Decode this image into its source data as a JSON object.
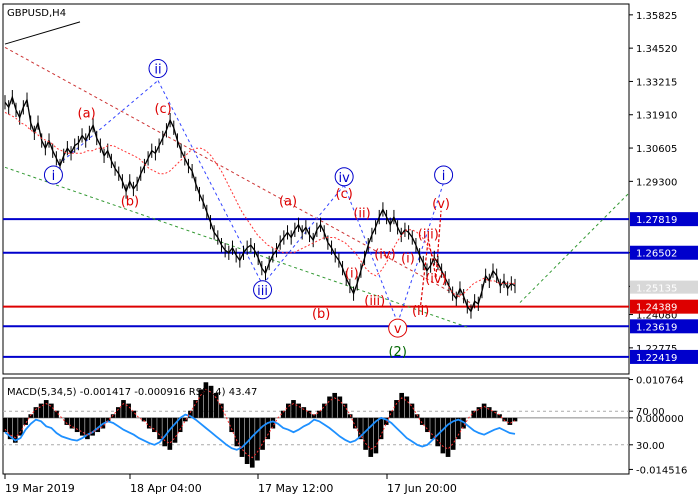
{
  "chart_data": {
    "type": "line",
    "symbol_label": "GBPUSD,H4",
    "price_axis": {
      "range": [
        1.2175,
        1.3625
      ],
      "ticks": [
        "1.35825",
        "1.34520",
        "1.33215",
        "1.31910",
        "1.30605",
        "1.29300",
        "1.26502",
        "1.25185",
        "1.24080",
        "1.22775"
      ],
      "tick_values": [
        1.35825,
        1.3452,
        1.33215,
        1.3191,
        1.30605,
        1.293,
        1.26502,
        1.25185,
        1.2408,
        1.22775
      ],
      "current_price_label": "1.25135",
      "current_price": 1.25135
    },
    "levels": [
      {
        "value": 1.27819,
        "label": "1.27819",
        "color": "#0000cc"
      },
      {
        "value": 1.26502,
        "label": "1.26502",
        "color": "#0000cc"
      },
      {
        "value": 1.24389,
        "label": "1.24389",
        "color": "#dd0000"
      },
      {
        "value": 1.23619,
        "label": "1.23619",
        "color": "#0000cc"
      },
      {
        "value": 1.22419,
        "label": "1.22419",
        "color": "#0000cc"
      }
    ],
    "x_labels": [
      "19 Mar 2019",
      "18 Apr 04:00",
      "17 May 12:00",
      "17 Jun 20:00"
    ],
    "price_series": [
      1.324,
      1.322,
      1.326,
      1.321,
      1.318,
      1.322,
      1.325,
      1.316,
      1.312,
      1.316,
      1.309,
      1.306,
      1.309,
      1.305,
      1.302,
      1.299,
      1.303,
      1.306,
      1.304,
      1.307,
      1.308,
      1.311,
      1.309,
      1.312,
      1.315,
      1.31,
      1.307,
      1.303,
      1.305,
      1.301,
      1.298,
      1.296,
      1.293,
      1.289,
      1.293,
      1.29,
      1.292,
      1.296,
      1.299,
      1.302,
      1.305,
      1.304,
      1.307,
      1.31,
      1.313,
      1.317,
      1.314,
      1.309,
      1.305,
      1.302,
      1.299,
      1.297,
      1.292,
      1.288,
      1.285,
      1.281,
      1.277,
      1.273,
      1.271,
      1.268,
      1.266,
      1.265,
      1.267,
      1.264,
      1.262,
      1.265,
      1.267,
      1.268,
      1.266,
      1.263,
      1.259,
      1.257,
      1.261,
      1.264,
      1.266,
      1.269,
      1.271,
      1.273,
      1.271,
      1.274,
      1.276,
      1.273,
      1.275,
      1.272,
      1.27,
      1.274,
      1.276,
      1.273,
      1.269,
      1.267,
      1.264,
      1.262,
      1.259,
      1.255,
      1.252,
      1.249,
      1.253,
      1.258,
      1.263,
      1.268,
      1.272,
      1.275,
      1.279,
      1.282,
      1.279,
      1.276,
      1.279,
      1.275,
      1.272,
      1.274,
      1.273,
      1.271,
      1.268,
      1.264,
      1.261,
      1.258,
      1.26,
      1.263,
      1.261,
      1.258,
      1.255,
      1.252,
      1.249,
      1.247,
      1.251,
      1.248,
      1.244,
      1.242,
      1.246,
      1.245,
      1.25,
      1.256,
      1.254,
      1.258,
      1.256,
      1.252,
      1.254,
      1.251,
      1.253,
      1.252
    ],
    "ma_series": [
      1.32,
      1.319,
      1.318,
      1.316,
      1.315,
      1.313,
      1.312,
      1.31,
      1.309,
      1.308,
      1.306,
      1.305,
      1.304,
      1.304,
      1.304,
      1.304,
      1.305,
      1.305,
      1.306,
      1.306,
      1.307,
      1.307,
      1.306,
      1.305,
      1.304,
      1.303,
      1.302,
      1.3,
      1.298,
      1.297,
      1.296,
      1.296,
      1.297,
      1.299,
      1.301,
      1.303,
      1.305,
      1.306,
      1.306,
      1.305,
      1.303,
      1.3,
      1.297,
      1.293,
      1.289,
      1.285,
      1.281,
      1.278,
      1.275,
      1.272,
      1.27,
      1.268,
      1.267,
      1.266,
      1.265,
      1.265,
      1.265,
      1.266,
      1.267,
      1.268,
      1.269,
      1.27,
      1.271,
      1.271,
      1.271,
      1.27,
      1.269,
      1.267,
      1.265,
      1.262,
      1.259,
      1.257,
      1.256,
      1.258,
      1.261,
      1.265,
      1.269,
      1.272,
      1.274,
      1.274,
      1.273,
      1.271,
      1.268,
      1.264,
      1.26,
      1.256,
      1.252,
      1.249,
      1.248,
      1.249,
      1.251,
      1.253,
      1.254,
      1.255,
      1.254,
      1.254,
      1.253,
      1.253,
      1.253,
      1.253
    ],
    "wave_labels": [
      {
        "text": "i",
        "color": "#0000cc",
        "circled": true,
        "t": 0.095,
        "price": 1.2955
      },
      {
        "text": "ii",
        "color": "#0000cc",
        "circled": true,
        "t": 0.3,
        "price": 1.3372
      },
      {
        "text": "iii",
        "color": "#0000cc",
        "circled": true,
        "t": 0.505,
        "price": 1.2505
      },
      {
        "text": "iv",
        "color": "#0000cc",
        "circled": true,
        "t": 0.665,
        "price": 1.2948
      },
      {
        "text": "i",
        "color": "#0000cc",
        "circled": true,
        "t": 0.86,
        "price": 1.2955
      },
      {
        "text": "v",
        "color": "#dd0000",
        "circled": true,
        "t": 0.77,
        "price": 1.2355
      },
      {
        "text": "(2)",
        "color": "#006600",
        "circled": false,
        "t": 0.77,
        "price": 1.2265
      },
      {
        "text": "(a)",
        "color": "#dd0000",
        "circled": false,
        "t": 0.16,
        "price": 1.32
      },
      {
        "text": "(b)",
        "color": "#dd0000",
        "circled": false,
        "t": 0.245,
        "price": 1.2855
      },
      {
        "text": "(c)",
        "color": "#dd0000",
        "circled": false,
        "t": 0.31,
        "price": 1.3218
      },
      {
        "text": "(a)",
        "color": "#dd0000",
        "circled": false,
        "t": 0.555,
        "price": 1.2855
      },
      {
        "text": "(b)",
        "color": "#dd0000",
        "circled": false,
        "t": 0.62,
        "price": 1.2415
      },
      {
        "text": "(c)",
        "color": "#dd0000",
        "circled": false,
        "t": 0.665,
        "price": 1.2885
      },
      {
        "text": "(i)",
        "color": "#dd0000",
        "circled": false,
        "t": 0.68,
        "price": 1.2573
      },
      {
        "text": "(ii)",
        "color": "#dd0000",
        "circled": false,
        "t": 0.7,
        "price": 1.2808
      },
      {
        "text": "(iii)",
        "color": "#dd0000",
        "circled": false,
        "t": 0.725,
        "price": 1.2465
      },
      {
        "text": "(iv)",
        "color": "#dd0000",
        "circled": false,
        "t": 0.745,
        "price": 1.2648
      },
      {
        "text": "(i)",
        "color": "#dd0000",
        "circled": false,
        "t": 0.79,
        "price": 1.2632
      },
      {
        "text": "(ii)",
        "color": "#dd0000",
        "circled": false,
        "t": 0.815,
        "price": 1.2425
      },
      {
        "text": "(iii)",
        "color": "#dd0000",
        "circled": false,
        "t": 0.83,
        "price": 1.2725
      },
      {
        "text": "(iv)",
        "color": "#dd0000",
        "circled": false,
        "t": 0.845,
        "price": 1.2552
      },
      {
        "text": "(v)",
        "color": "#dd0000",
        "circled": false,
        "t": 0.855,
        "price": 1.2845
      }
    ],
    "indicator": {
      "title": "MACD(5,34,5) -0.001417 -0.000916 RSI(14) 43.47",
      "macd_range": [
        -0.0158,
        0.0112
      ],
      "rsi_range": [
        0,
        100
      ],
      "ticks": [
        "0.010764",
        "70.00",
        "0.000000",
        "30.00",
        "-0.014516"
      ],
      "tick_values": [
        0.010764,
        70,
        0,
        30,
        -0.014516
      ],
      "tick_kinds": [
        "macd",
        "rsi",
        "macd",
        "rsi",
        "macd"
      ],
      "macd_histogram": [
        -0.004,
        -0.006,
        -0.007,
        -0.005,
        -0.002,
        0.001,
        0.003,
        0.004,
        0.005,
        0.004,
        0.002,
        0.0,
        -0.002,
        -0.003,
        -0.004,
        -0.005,
        -0.006,
        -0.005,
        -0.004,
        -0.003,
        -0.001,
        0.001,
        0.003,
        0.005,
        0.004,
        0.002,
        0.0,
        -0.001,
        -0.003,
        -0.004,
        -0.006,
        -0.008,
        -0.009,
        -0.007,
        -0.004,
        -0.001,
        0.002,
        0.005,
        0.008,
        0.01,
        0.009,
        0.007,
        0.004,
        0.0,
        -0.004,
        -0.008,
        -0.011,
        -0.013,
        -0.014,
        -0.012,
        -0.009,
        -0.006,
        -0.003,
        0.0,
        0.002,
        0.004,
        0.005,
        0.004,
        0.003,
        0.002,
        0.001,
        0.002,
        0.004,
        0.006,
        0.007,
        0.006,
        0.004,
        0.001,
        -0.003,
        -0.006,
        -0.009,
        -0.011,
        -0.01,
        -0.006,
        -0.002,
        0.002,
        0.005,
        0.007,
        0.006,
        0.004,
        0.001,
        -0.002,
        -0.004,
        -0.006,
        -0.008,
        -0.01,
        -0.011,
        -0.009,
        -0.006,
        -0.003,
        0.0,
        0.002,
        0.003,
        0.004,
        0.003,
        0.002,
        0.001,
        -0.001,
        -0.002,
        -0.001
      ],
      "rsi_series": [
        45,
        40,
        35,
        38,
        48,
        55,
        60,
        58,
        52,
        50,
        44,
        40,
        38,
        36,
        35,
        38,
        42,
        45,
        50,
        55,
        58,
        56,
        52,
        48,
        45,
        42,
        38,
        35,
        32,
        30,
        33,
        40,
        48,
        55,
        62,
        66,
        64,
        60,
        55,
        50,
        45,
        40,
        35,
        30,
        26,
        24,
        27,
        33,
        40,
        46,
        52,
        56,
        58,
        55,
        50,
        48,
        45,
        48,
        52,
        55,
        60,
        58,
        54,
        50,
        45,
        40,
        36,
        33,
        35,
        40,
        46,
        52,
        58,
        62,
        60,
        56,
        50,
        44,
        38,
        34,
        30,
        28,
        30,
        36,
        42,
        48,
        54,
        58,
        60,
        57,
        52,
        47,
        44,
        42,
        45,
        48,
        50,
        47,
        44,
        43
      ]
    }
  }
}
